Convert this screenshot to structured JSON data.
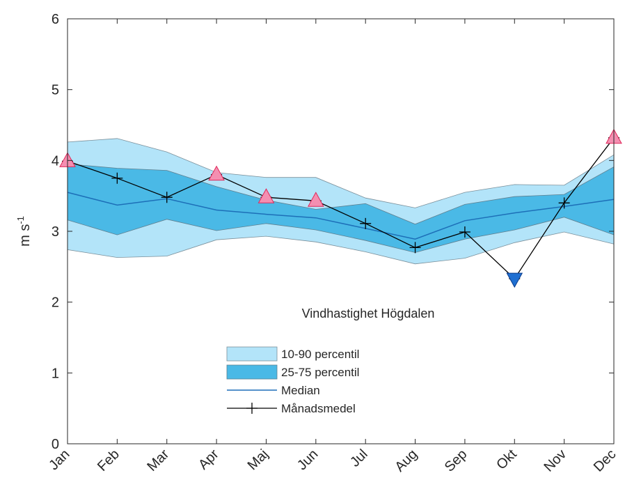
{
  "chart_data": {
    "type": "area",
    "title": "Vindhastighet Högdalen",
    "ylabel": "m s",
    "ylabel_superscript": "-1",
    "xlabel": "",
    "ylim": [
      0,
      6
    ],
    "yticks": [
      "0",
      "1",
      "2",
      "3",
      "4",
      "5",
      "6"
    ],
    "categories": [
      "Jan",
      "Feb",
      "Mar",
      "Apr",
      "Maj",
      "Jun",
      "Jul",
      "Aug",
      "Sep",
      "Okt",
      "Nov",
      "Dec"
    ],
    "grid": false,
    "legend_placement": "bottom-center",
    "series": [
      {
        "name": "10-90 percentil",
        "kind": "band",
        "color": "#b3e4f9",
        "lower": [
          2.74,
          2.63,
          2.65,
          2.88,
          2.93,
          2.85,
          2.71,
          2.54,
          2.62,
          2.84,
          2.99,
          2.82
        ],
        "upper": [
          4.26,
          4.31,
          4.12,
          3.83,
          3.76,
          3.76,
          3.47,
          3.33,
          3.55,
          3.66,
          3.65,
          4.08
        ]
      },
      {
        "name": "25-75 percentil",
        "kind": "band",
        "color": "#4ab9e6",
        "lower": [
          3.16,
          2.95,
          3.17,
          3.01,
          3.11,
          3.02,
          2.87,
          2.7,
          2.89,
          3.02,
          3.2,
          2.95
        ],
        "upper": [
          3.95,
          3.89,
          3.86,
          3.63,
          3.44,
          3.31,
          3.39,
          3.1,
          3.38,
          3.49,
          3.52,
          3.91
        ]
      },
      {
        "name": "Median",
        "kind": "line",
        "color": "#1d6fb8",
        "values": [
          3.55,
          3.37,
          3.46,
          3.3,
          3.24,
          3.19,
          3.04,
          2.89,
          3.15,
          3.26,
          3.35,
          3.45
        ]
      },
      {
        "name": "Månadsmedel",
        "kind": "line-marker",
        "color": "#000000",
        "values": [
          3.99,
          3.75,
          3.48,
          3.8,
          3.48,
          3.43,
          3.11,
          2.77,
          2.99,
          2.33,
          3.4,
          4.32
        ]
      }
    ],
    "high_markers": {
      "color": "#f48fb1",
      "indices": [
        0,
        3,
        4,
        5,
        11
      ]
    },
    "low_markers": {
      "color": "#1f6fd1",
      "indices": [
        9
      ]
    }
  }
}
